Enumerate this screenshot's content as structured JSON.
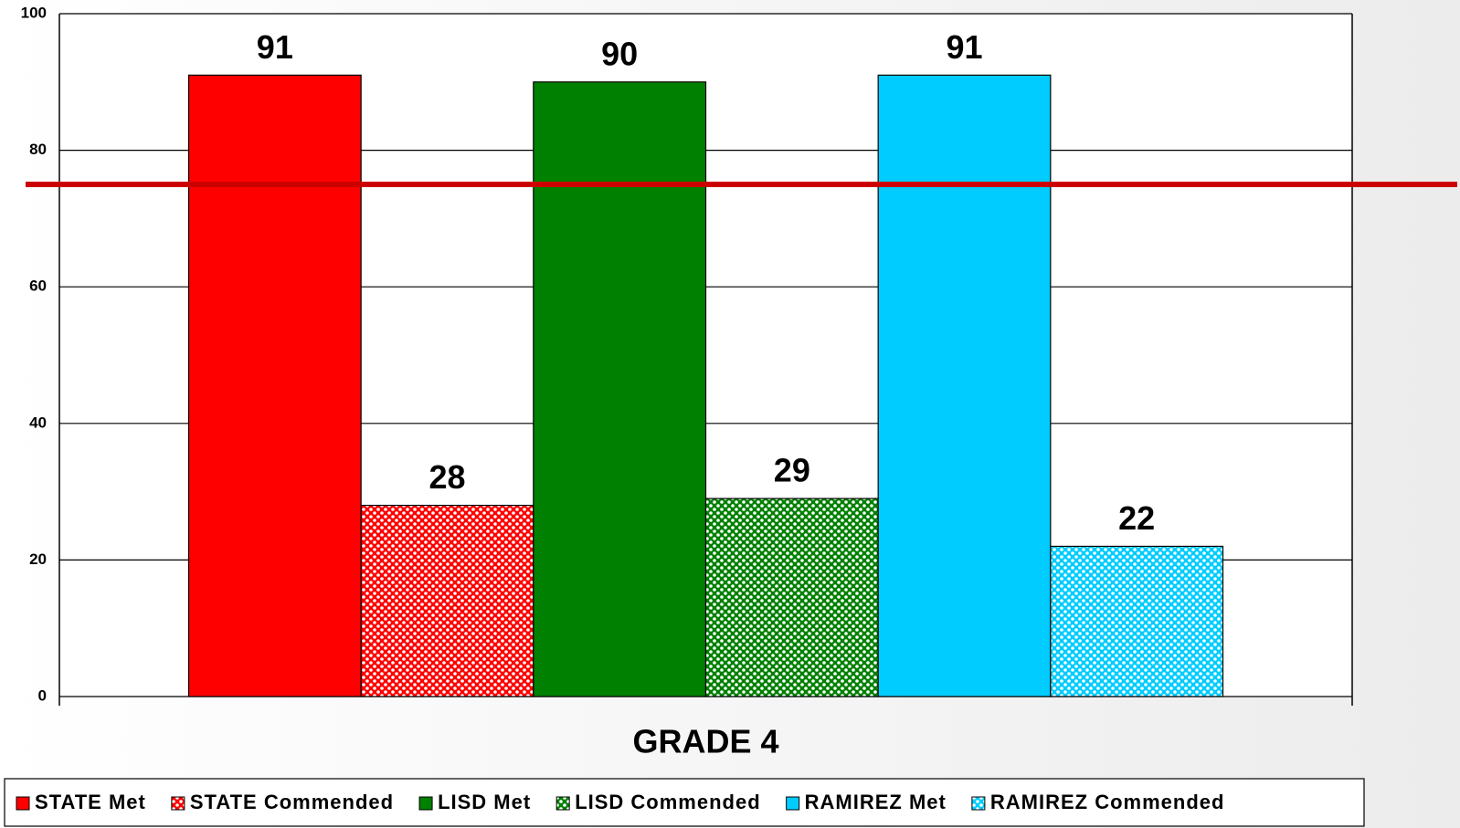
{
  "chart_data": {
    "type": "bar",
    "categories": [
      "GRADE 4"
    ],
    "series": [
      {
        "name": "STATE Met",
        "color": "#ff0000",
        "patterned": false,
        "values": [
          91
        ]
      },
      {
        "name": "STATE Commended",
        "color": "#ff0000",
        "patterned": true,
        "values": [
          28
        ]
      },
      {
        "name": "LISD Met",
        "color": "#008000",
        "patterned": false,
        "values": [
          90
        ]
      },
      {
        "name": "LISD Commended",
        "color": "#008000",
        "patterned": true,
        "values": [
          29
        ]
      },
      {
        "name": "RAMIREZ Met",
        "color": "#00ccff",
        "patterned": false,
        "values": [
          91
        ]
      },
      {
        "name": "RAMIREZ Commended",
        "color": "#00ccff",
        "patterned": true,
        "values": [
          22
        ]
      }
    ],
    "ylim": [
      0,
      100
    ],
    "yticks": [
      0,
      20,
      40,
      60,
      80,
      100
    ],
    "grid": true,
    "reference_line": {
      "value": 75,
      "color": "#cc0000"
    },
    "legend": "bottom"
  }
}
